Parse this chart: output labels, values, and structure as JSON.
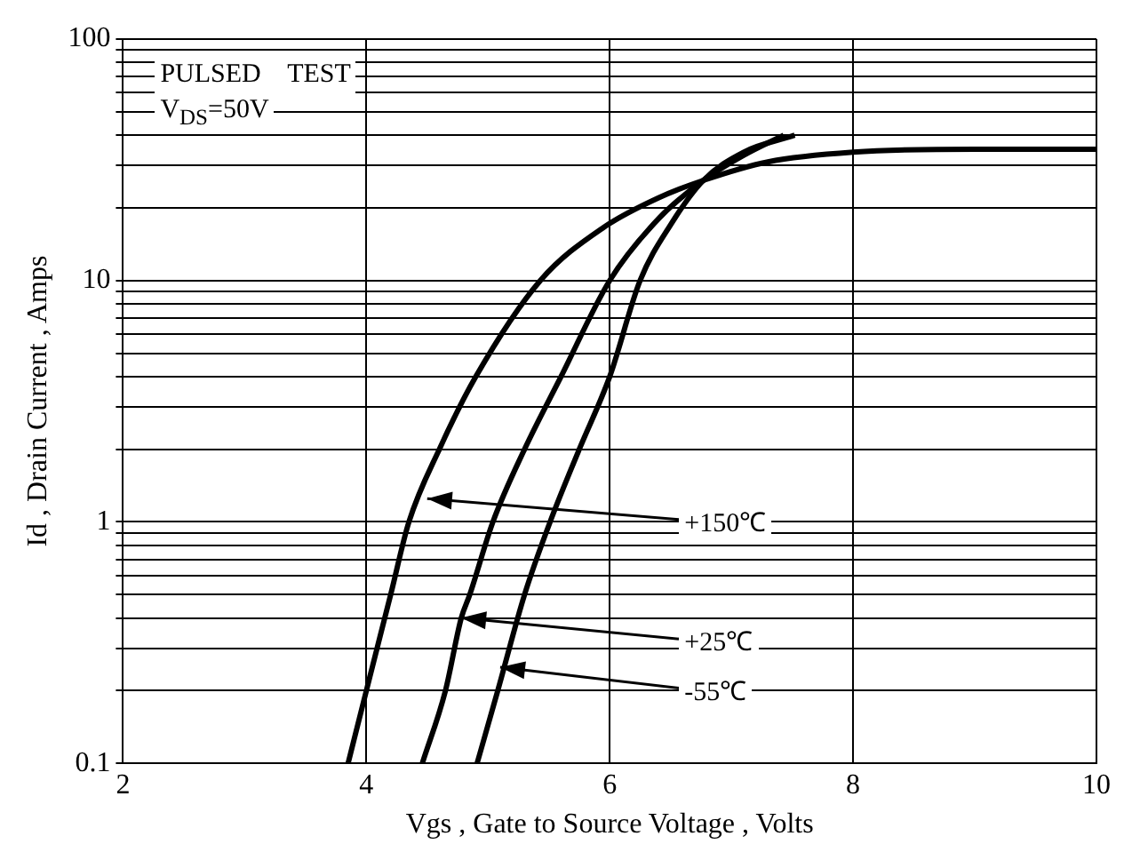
{
  "chart_data": {
    "type": "line",
    "xlabel": "Vgs , Gate to Source Voltage , Volts",
    "ylabel": "Id , Drain Current , Amps",
    "log": "y",
    "grid": true,
    "legend": false,
    "marker": "none",
    "line_style": "solid",
    "xlim": [
      2,
      10
    ],
    "xticks": [
      2,
      4,
      6,
      8,
      10
    ],
    "ylim": [
      0.1,
      100
    ],
    "yticks": [
      0.1,
      1,
      10,
      100
    ],
    "series": [
      {
        "color": "#000000",
        "x": [
          3.85,
          4.0,
          4.2,
          4.35,
          4.6,
          4.9,
          5.43,
          5.95,
          6.4,
          6.77,
          7.3,
          8,
          9,
          10
        ],
        "values": [
          0.1,
          0.2,
          0.5,
          1,
          2,
          4,
          10,
          16.6,
          22,
          26,
          31,
          34,
          35,
          35
        ]
      },
      {
        "color": "#000000",
        "x": [
          4.46,
          4.65,
          4.78,
          4.85,
          5.04,
          5.3,
          5.6,
          6.0,
          6.4,
          6.77,
          7.1,
          7.43
        ],
        "values": [
          0.1,
          0.2,
          0.4,
          0.5,
          1,
          2,
          4,
          10,
          18,
          26,
          33,
          40
        ]
      },
      {
        "color": "#000000",
        "x": [
          4.91,
          5.08,
          5.3,
          5.51,
          5.75,
          6.0,
          6.25,
          6.5,
          6.77,
          7.1,
          7.52
        ],
        "values": [
          0.1,
          0.2,
          0.5,
          1,
          2,
          4,
          10,
          17,
          26,
          34,
          40
        ]
      }
    ],
    "annotations": [
      "PULSED    TEST",
      "V$_{DS}$=50V",
      {
        "text": "+150℃",
        "x": 4.5,
        "y": 1.25
      },
      {
        "text": "+25℃",
        "x": 4.78,
        "y": 0.4
      },
      {
        "text": "-55℃",
        "x": 5.1,
        "y": 0.25
      }
    ]
  }
}
